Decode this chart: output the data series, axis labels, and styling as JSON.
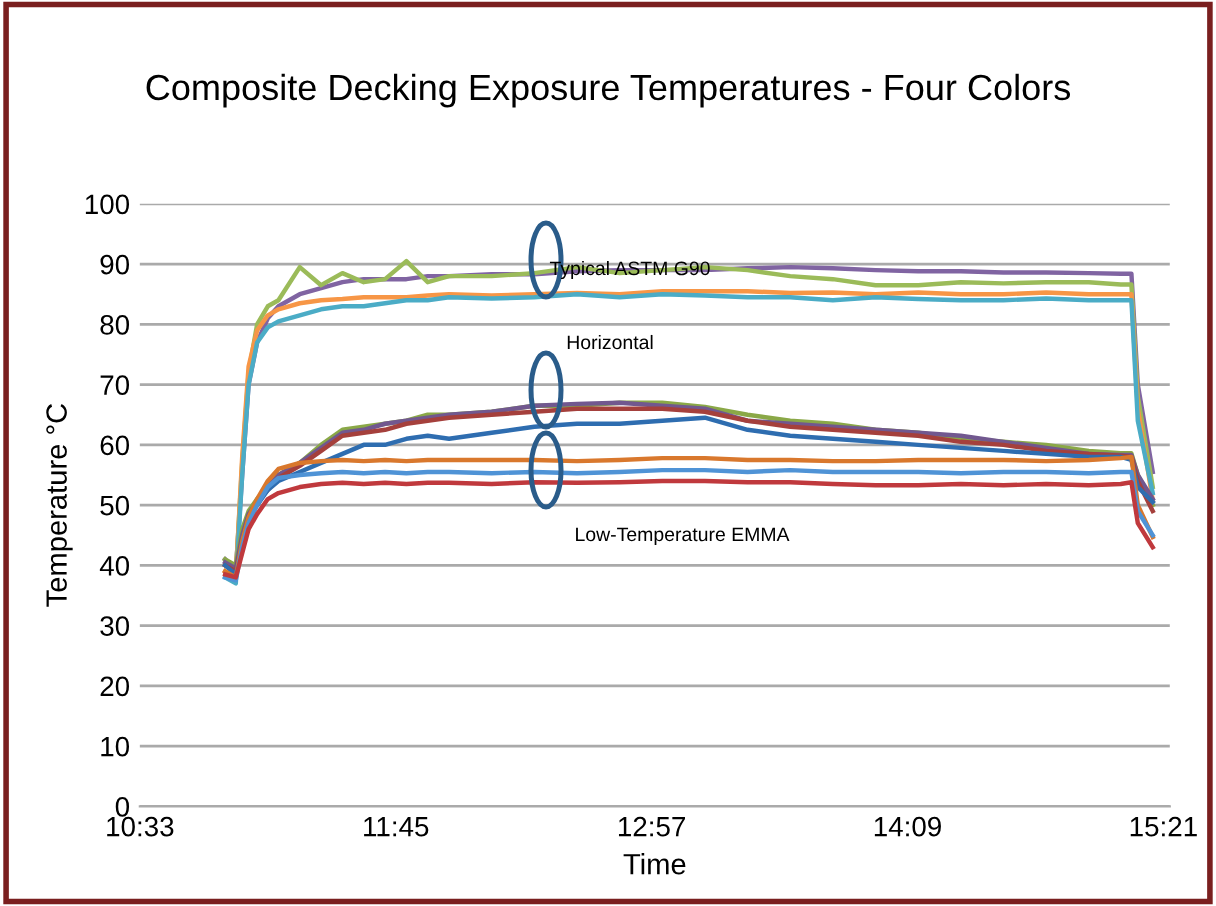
{
  "chart_data": {
    "type": "line",
    "title": "Composite Decking Exposure Temperatures - Four Colors",
    "xlabel": "Time",
    "ylabel": "Temperature °C",
    "x": [
      10.95,
      11.0,
      11.03,
      11.06,
      11.1,
      11.15,
      11.2,
      11.3,
      11.4,
      11.5,
      11.6,
      11.7,
      11.8,
      11.9,
      12.0,
      12.2,
      12.4,
      12.6,
      12.8,
      13.0,
      13.2,
      13.4,
      13.6,
      13.8,
      14.0,
      14.2,
      14.4,
      14.6,
      14.8,
      15.0,
      15.15,
      15.2,
      15.23,
      15.3
    ],
    "xlim": [
      10.55,
      15.38
    ],
    "xticks": [
      {
        "value": 10.55,
        "label": "10:33"
      },
      {
        "value": 11.75,
        "label": "11:45"
      },
      {
        "value": 12.95,
        "label": "12:57"
      },
      {
        "value": 14.15,
        "label": "14:09"
      },
      {
        "value": 15.35,
        "label": "15:21"
      }
    ],
    "ylim": [
      0,
      100
    ],
    "yticks": [
      0,
      10,
      20,
      30,
      40,
      50,
      60,
      70,
      80,
      90,
      100
    ],
    "grid": "y",
    "series": [
      {
        "color": "#8064a2",
        "values": [
          41,
          39,
          55,
          70,
          77,
          81,
          83,
          85,
          86,
          87,
          87.5,
          87.5,
          87.5,
          88,
          88,
          88.3,
          88.3,
          88.8,
          89,
          89,
          89,
          89.3,
          89.5,
          89.3,
          89,
          88.8,
          88.8,
          88.6,
          88.6,
          88.5,
          88.4,
          88.4,
          70,
          55.5
        ]
      },
      {
        "color": "#9bbb59",
        "values": [
          40,
          38.5,
          57,
          72,
          80,
          83,
          84,
          89.5,
          86.5,
          88.5,
          87,
          87.5,
          90.5,
          87,
          88,
          88,
          88.5,
          89.5,
          88.5,
          89,
          89.5,
          89,
          88,
          87.5,
          86.5,
          86.5,
          87,
          86.8,
          87,
          87,
          86.6,
          86.6,
          68,
          53
        ]
      },
      {
        "color": "#f79646",
        "values": [
          39,
          38,
          58,
          73,
          79,
          81.5,
          82.5,
          83.5,
          84,
          84.2,
          84.5,
          84.5,
          84.5,
          84.8,
          85,
          84.8,
          85,
          85.2,
          85,
          85.5,
          85.5,
          85.5,
          85.2,
          85.3,
          85,
          85.3,
          85,
          85,
          85.3,
          85,
          85,
          85,
          66,
          50.8
        ]
      },
      {
        "color": "#4bacc6",
        "values": [
          38,
          37,
          55,
          70,
          77,
          79.5,
          80.5,
          81.5,
          82.5,
          83,
          83,
          83.5,
          84,
          84,
          84.5,
          84.3,
          84.5,
          85,
          84.5,
          85,
          84.8,
          84.5,
          84.5,
          84,
          84.5,
          84.2,
          84,
          84,
          84.3,
          84,
          84,
          84,
          64,
          52
        ]
      },
      {
        "color": "#8aa847",
        "values": [
          41,
          40,
          46,
          49,
          51,
          53,
          55,
          57,
          60,
          62.5,
          63,
          63.5,
          64,
          65,
          65,
          65.5,
          66.5,
          66.5,
          67,
          67,
          66.3,
          65,
          64,
          63.5,
          62.5,
          62,
          61,
          60.5,
          60,
          59,
          58.6,
          58.6,
          55,
          50
        ]
      },
      {
        "color": "#71588f",
        "values": [
          40.5,
          39.5,
          45,
          48.5,
          50.5,
          53,
          55,
          57,
          59.5,
          62,
          62.5,
          63.5,
          64,
          64.5,
          65,
          65.5,
          66.5,
          66.8,
          67,
          66.5,
          66,
          64,
          63.5,
          63,
          62.5,
          62,
          61.5,
          60.5,
          59.5,
          58.5,
          58.3,
          58.3,
          55,
          51
        ]
      },
      {
        "color": "#a5403c",
        "values": [
          40,
          39,
          44,
          48,
          50.5,
          52.5,
          54.5,
          56.5,
          59,
          61.5,
          62,
          62.5,
          63.5,
          64,
          64.5,
          65,
          65.5,
          66,
          66,
          66,
          65.5,
          64,
          63,
          62.5,
          62,
          61.5,
          60.5,
          60,
          59,
          58.5,
          58.2,
          58,
          54,
          49
        ]
      },
      {
        "color": "#2e6db0",
        "values": [
          40,
          38.5,
          44,
          48,
          50,
          52.5,
          54,
          55.5,
          57,
          58.5,
          60,
          60,
          61,
          61.5,
          61,
          62,
          63,
          63.5,
          63.5,
          64,
          64.5,
          62.5,
          61.5,
          61,
          60.5,
          60,
          59.5,
          59,
          58.5,
          58,
          58,
          57.5,
          53,
          50.5
        ]
      },
      {
        "color": "#d9782d",
        "values": [
          39,
          38,
          44,
          48,
          51,
          54,
          56,
          57,
          57.3,
          57.5,
          57.3,
          57.5,
          57.3,
          57.5,
          57.5,
          57.5,
          57.5,
          57.3,
          57.5,
          57.8,
          57.8,
          57.5,
          57.5,
          57.3,
          57.3,
          57.5,
          57.5,
          57.5,
          57.3,
          57.5,
          57.8,
          58,
          50,
          44.7
        ]
      },
      {
        "color": "#4f93d6",
        "values": [
          38,
          37.5,
          43,
          47,
          50,
          53,
          54.5,
          55,
          55.3,
          55.5,
          55.3,
          55.5,
          55.3,
          55.5,
          55.5,
          55.3,
          55.5,
          55.3,
          55.5,
          55.8,
          55.8,
          55.5,
          55.8,
          55.5,
          55.5,
          55.5,
          55.3,
          55.5,
          55.5,
          55.3,
          55.5,
          55.5,
          49,
          45
        ]
      },
      {
        "color": "#c0393d",
        "values": [
          38.5,
          38,
          42,
          46,
          48.5,
          51,
          52,
          53,
          53.5,
          53.7,
          53.5,
          53.7,
          53.5,
          53.7,
          53.7,
          53.5,
          53.8,
          53.7,
          53.8,
          54,
          54,
          53.8,
          53.8,
          53.5,
          53.3,
          53.3,
          53.5,
          53.3,
          53.5,
          53.3,
          53.5,
          53.8,
          47,
          43
        ]
      }
    ],
    "annotations": [
      "Typical ASTM G90",
      "Horizontal",
      "Low-Temperature EMMA"
    ]
  }
}
